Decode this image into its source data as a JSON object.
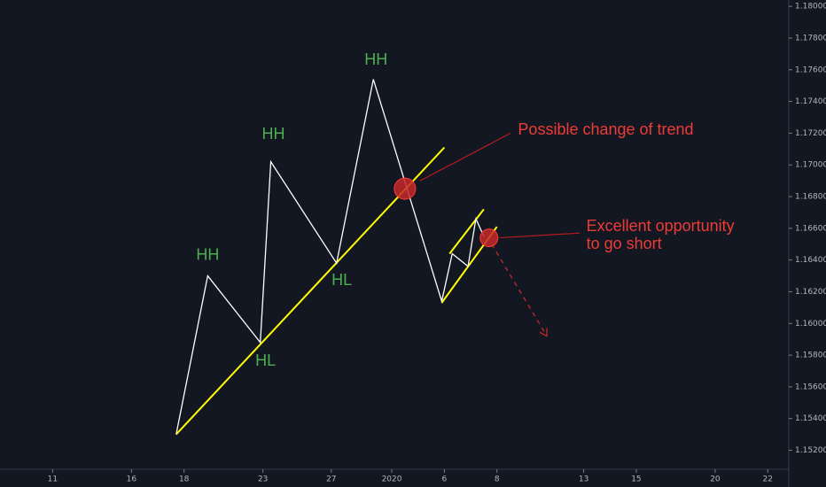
{
  "chart_data": {
    "type": "line",
    "x": [
      4.7,
      5.9,
      7.9,
      8.3,
      10.8,
      12.2,
      14.8,
      15.2,
      15.8,
      16.1,
      16.4
    ],
    "series": [
      {
        "color": "#ffffff",
        "values": [
          1.153,
          1.163,
          1.1588,
          1.1702,
          1.1638,
          1.1754,
          1.1614,
          1.1644,
          1.1636,
          1.1666,
          1.1655
        ]
      }
    ],
    "xlim": [
      -2,
      28
    ],
    "xticks": [
      {
        "value": 0,
        "label": "11"
      },
      {
        "value": 3,
        "label": "16"
      },
      {
        "value": 5,
        "label": "18"
      },
      {
        "value": 8,
        "label": "23"
      },
      {
        "value": 10.6,
        "label": "27"
      },
      {
        "value": 12.9,
        "label": "2020"
      },
      {
        "value": 14.9,
        "label": "6"
      },
      {
        "value": 16.9,
        "label": "8"
      },
      {
        "value": 20.2,
        "label": "13"
      },
      {
        "value": 22.2,
        "label": "15"
      },
      {
        "value": 25.2,
        "label": "20"
      },
      {
        "value": 27.2,
        "label": "22"
      }
    ],
    "ylim": [
      1.1508,
      1.1804
    ],
    "yticks": [
      {
        "value": 1.152,
        "label": "1.15200"
      },
      {
        "value": 1.154,
        "label": "1.15400"
      },
      {
        "value": 1.156,
        "label": "1.15600"
      },
      {
        "value": 1.158,
        "label": "1.15800"
      },
      {
        "value": 1.16,
        "label": "1.16000"
      },
      {
        "value": 1.162,
        "label": "1.16200"
      },
      {
        "value": 1.164,
        "label": "1.16400"
      },
      {
        "value": 1.166,
        "label": "1.16600"
      },
      {
        "value": 1.168,
        "label": "1.16800"
      },
      {
        "value": 1.17,
        "label": "1.17000"
      },
      {
        "value": 1.172,
        "label": "1.17200"
      },
      {
        "value": 1.174,
        "label": "1.17400"
      },
      {
        "value": 1.176,
        "label": "1.17600"
      },
      {
        "value": 1.178,
        "label": "1.17800"
      },
      {
        "value": 1.18,
        "label": "1.18000"
      }
    ],
    "drawings": {
      "lines": [
        {
          "color": "#ffff00",
          "x": [
            4.7,
            14.9
          ],
          "y": [
            1.153,
            1.1711
          ]
        },
        {
          "color": "#ffff00",
          "x": [
            15.1,
            16.4
          ],
          "y": [
            1.1644,
            1.1672
          ]
        },
        {
          "color": "#ffff00",
          "x": [
            14.8,
            16.9
          ],
          "y": [
            1.1613,
            1.1661
          ]
        },
        {
          "color": "#b71c1c",
          "x": [
            13.98,
            17.42
          ],
          "y": [
            1.169,
            1.172
          ]
        },
        {
          "color": "#b71c1c",
          "x": [
            17.0,
            20.05
          ],
          "y": [
            1.1654,
            1.1657
          ]
        }
      ],
      "arrows": [
        {
          "color": "#c62828",
          "x": [
            16.7,
            18.8
          ],
          "y": [
            1.165,
            1.1592
          ]
        }
      ],
      "circles": [
        {
          "color": "#c62828",
          "x": 13.4,
          "y": 1.1685
        },
        {
          "color": "#c62828",
          "x": 16.6,
          "y": 1.1654
        }
      ]
    },
    "annotations": [
      {
        "text": [
          "HH"
        ],
        "color": "#4caf50",
        "x": 5.9,
        "y": 1.1643
      },
      {
        "text": [
          "HH"
        ],
        "color": "#4caf50",
        "x": 8.4,
        "y": 1.1719
      },
      {
        "text": [
          "HH"
        ],
        "color": "#4caf50",
        "x": 12.3,
        "y": 1.1766
      },
      {
        "text": [
          "HL"
        ],
        "color": "#4caf50",
        "x": 8.1,
        "y": 1.1576
      },
      {
        "text": [
          "HL"
        ],
        "color": "#4caf50",
        "x": 11.0,
        "y": 1.1627
      },
      {
        "text": [
          "Possible change of trend"
        ],
        "color": "#ef3b36",
        "x": 17.7,
        "y": 1.1722,
        "anchor": "start"
      },
      {
        "text": [
          "Excellent opportunity",
          "to go short"
        ],
        "color": "#ef3b36",
        "x": 20.3,
        "y": 1.1661,
        "anchor": "start"
      }
    ]
  }
}
